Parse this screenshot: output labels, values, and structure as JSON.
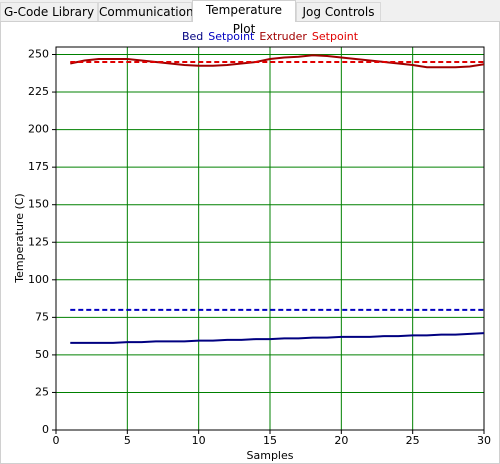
{
  "tabs": [
    "G-Code Library",
    "Communication",
    "Temperature Plot",
    "Jog Controls"
  ],
  "active_tab": "Temperature Plot",
  "chart_data": {
    "type": "line",
    "xlabel": "Samples",
    "ylabel": "Temperature (C)",
    "x": [
      1,
      2,
      3,
      4,
      5,
      6,
      7,
      8,
      9,
      10,
      11,
      12,
      13,
      14,
      15,
      16,
      17,
      18,
      19,
      20,
      21,
      22,
      23,
      24,
      25,
      26,
      27,
      28,
      29,
      30
    ],
    "series": [
      {
        "name": "Bed",
        "color": "#000080",
        "style": "solid",
        "values": [
          58,
          58,
          58,
          58,
          58.5,
          58.5,
          59,
          59,
          59,
          59.5,
          59.5,
          60,
          60,
          60.5,
          60.5,
          61,
          61,
          61.5,
          61.5,
          62,
          62,
          62,
          62.5,
          62.5,
          63,
          63,
          63.5,
          63.5,
          64,
          64.5
        ]
      },
      {
        "name": "Setpoint",
        "color": "#0000c0",
        "style": "dashed",
        "values": [
          80,
          80,
          80,
          80,
          80,
          80,
          80,
          80,
          80,
          80,
          80,
          80,
          80,
          80,
          80,
          80,
          80,
          80,
          80,
          80,
          80,
          80,
          80,
          80,
          80,
          80,
          80,
          80,
          80,
          80
        ]
      },
      {
        "name": "Extruder",
        "color": "#a00000",
        "style": "solid",
        "values": [
          244,
          246,
          247,
          247,
          247,
          246,
          245,
          244,
          243,
          242.5,
          242.5,
          243,
          244,
          245,
          247,
          248,
          248.5,
          249.5,
          249,
          248,
          247,
          246,
          245,
          244,
          243,
          241.5,
          241.5,
          241.5,
          242,
          243.5
        ]
      },
      {
        "name": "Setpoint",
        "color": "#e00000",
        "style": "dashed",
        "values": [
          245,
          245,
          245,
          245,
          245,
          245,
          245,
          245,
          245,
          245,
          245,
          245,
          245,
          245,
          245,
          245,
          245,
          245,
          245,
          245,
          245,
          245,
          245,
          245,
          245,
          245,
          245,
          245,
          245,
          245
        ]
      }
    ],
    "xlim": [
      0,
      30
    ],
    "xticks": [
      0,
      5,
      10,
      15,
      20,
      25,
      30
    ],
    "ylim": [
      0,
      255
    ],
    "yticks": [
      0,
      25,
      50,
      75,
      100,
      125,
      150,
      175,
      200,
      225,
      250
    ],
    "grid": true,
    "grid_color": "#008000",
    "legend": "top"
  }
}
